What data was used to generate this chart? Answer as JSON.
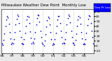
{
  "title": "Milwaukee Weather Dew Point  Monthly Low",
  "title_fontsize": 4.0,
  "bg_color": "#e8e8e8",
  "plot_bg_color": "#ffffff",
  "dot_color": "#0000cc",
  "dot_size": 1.5,
  "legend_color": "#0000ff",
  "legend_label": "Dew Pt Low",
  "ylim": [
    -15,
    75
  ],
  "data_points": [
    5,
    2,
    12,
    25,
    40,
    53,
    60,
    58,
    45,
    28,
    15,
    3,
    6,
    4,
    14,
    27,
    43,
    55,
    63,
    61,
    47,
    30,
    17,
    5,
    4,
    3,
    13,
    26,
    41,
    54,
    61,
    59,
    46,
    29,
    16,
    4,
    7,
    5,
    15,
    28,
    44,
    56,
    64,
    62,
    49,
    31,
    18,
    6,
    3,
    1,
    11,
    24,
    39,
    52,
    59,
    57,
    44,
    27,
    14,
    2,
    5,
    3,
    13,
    26,
    41,
    54,
    61,
    60,
    47,
    30,
    17,
    5,
    6,
    4,
    14,
    27,
    43,
    56,
    63,
    61,
    48,
    31,
    18,
    6,
    4,
    2,
    12,
    25,
    40,
    53,
    60,
    58,
    45,
    28,
    15,
    3,
    5,
    3,
    13,
    26,
    42,
    55,
    62,
    60,
    47,
    30,
    17,
    4
  ],
  "n_months": 108,
  "x_tick_positions": [
    0,
    12,
    24,
    36,
    48,
    60,
    72,
    84,
    96
  ],
  "x_tick_labels": [
    "'96",
    "'97",
    "'98",
    "'99",
    "'00",
    "'01",
    "'02",
    "'03",
    "'04"
  ],
  "grid_positions": [
    12,
    24,
    36,
    48,
    60,
    72,
    84,
    96
  ],
  "ytick_vals": [
    -10,
    0,
    10,
    20,
    30,
    40,
    50,
    60,
    70
  ]
}
